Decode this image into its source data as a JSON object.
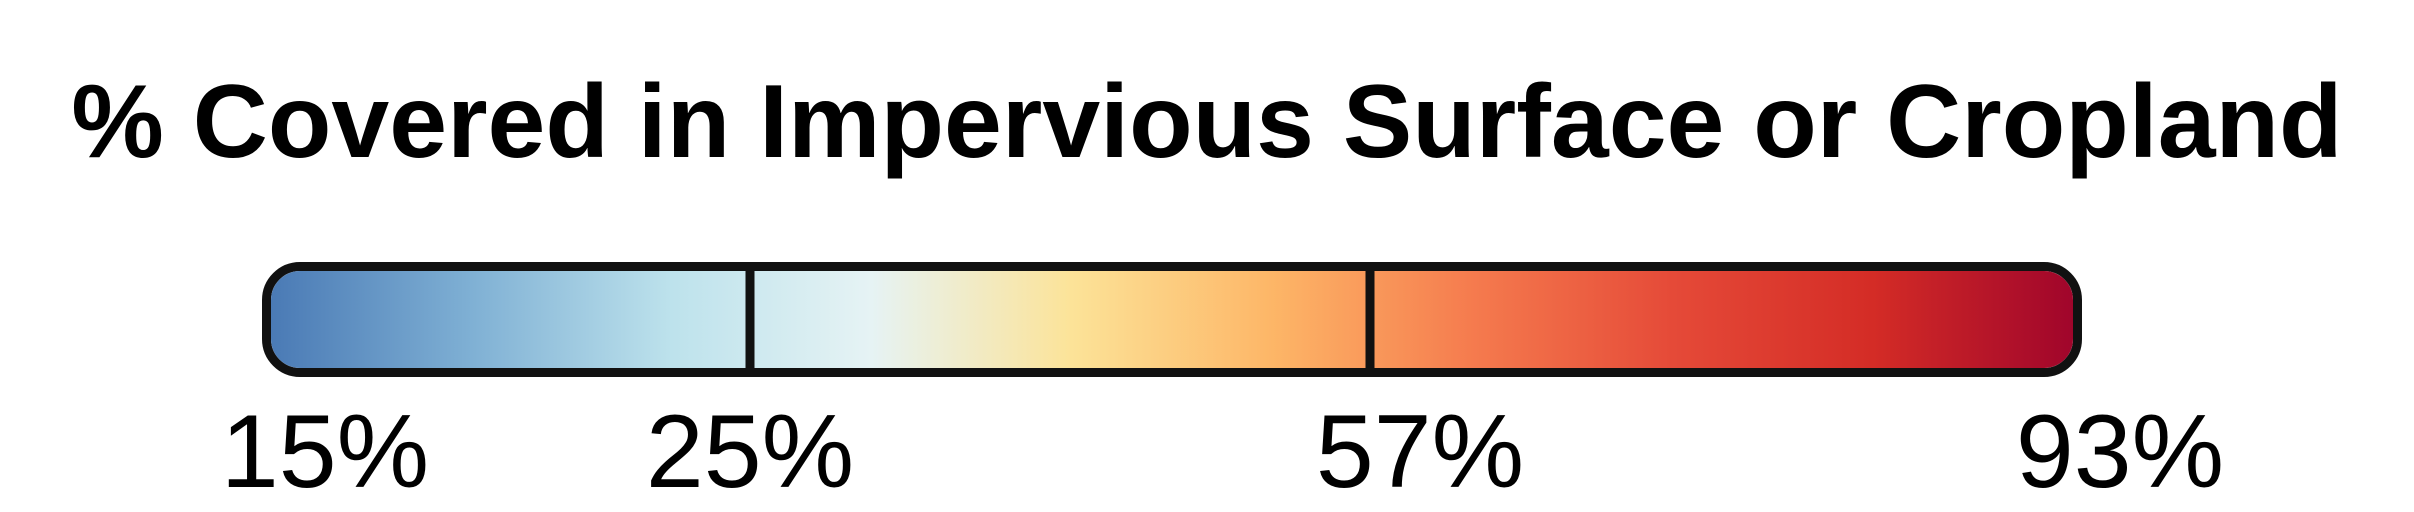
{
  "legend": {
    "title": "% Covered in Impervious Surface or Cropland",
    "stops": [
      "#4a7ab5",
      "#7fb0d4",
      "#bde2ec",
      "#e6f3f4",
      "#fce398",
      "#fdb667",
      "#f57b4e",
      "#e54a38",
      "#d42c26",
      "#a0052b"
    ],
    "breaks": [
      {
        "value": 15,
        "label": "15%"
      },
      {
        "value": 25,
        "label": "25%"
      },
      {
        "value": 57,
        "label": "57%"
      },
      {
        "value": 93,
        "label": "93%"
      }
    ]
  }
}
